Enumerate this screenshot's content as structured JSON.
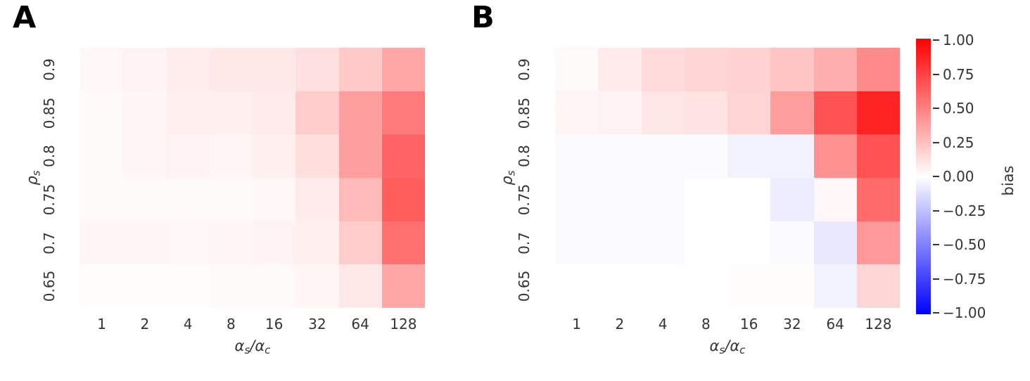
{
  "figure": {
    "background": "#ffffff",
    "text_color": "#343434",
    "panel_letter_color": "#000000"
  },
  "colorbar": {
    "label": "bias",
    "tick_labels": [
      "1.00",
      "0.75",
      "0.50",
      "0.25",
      "0.00",
      "−0.25",
      "−0.50",
      "−0.75",
      "−1.00"
    ],
    "tick_values": [
      1.0,
      0.75,
      0.5,
      0.25,
      0.0,
      -0.25,
      -0.5,
      -0.75,
      -1.0
    ],
    "vmin": -1.0,
    "vmax": 1.0,
    "top_color": "#ff0000",
    "mid_color": "#ffffff",
    "bottom_color": "#0000ff"
  },
  "chart_data": [
    {
      "type": "heatmap",
      "panel_label": "A",
      "colormap": "bwr",
      "vmin": -1.0,
      "vmax": 1.0,
      "x_categories": [
        "1",
        "2",
        "4",
        "8",
        "16",
        "32",
        "64",
        "128"
      ],
      "y_categories": [
        "0.9",
        "0.85",
        "0.8",
        "0.75",
        "0.7",
        "0.65"
      ],
      "xlabel": {
        "base1": "α",
        "sub1": "s",
        "sep": "/",
        "base2": "α",
        "sub2": "c"
      },
      "ylabel": {
        "base": "ρ",
        "sub": "s"
      },
      "values": [
        [
          0.03,
          0.05,
          0.07,
          0.09,
          0.09,
          0.12,
          0.21,
          0.35
        ],
        [
          0.02,
          0.04,
          0.06,
          0.06,
          0.08,
          0.2,
          0.38,
          0.52
        ],
        [
          0.02,
          0.04,
          0.05,
          0.04,
          0.06,
          0.13,
          0.38,
          0.61
        ],
        [
          0.02,
          0.02,
          0.02,
          0.02,
          0.03,
          0.08,
          0.27,
          0.64
        ],
        [
          0.04,
          0.04,
          0.03,
          0.04,
          0.05,
          0.06,
          0.2,
          0.56
        ],
        [
          0.01,
          0.01,
          0.01,
          0.02,
          0.02,
          0.04,
          0.09,
          0.35
        ]
      ]
    },
    {
      "type": "heatmap",
      "panel_label": "B",
      "colormap": "bwr",
      "vmin": -1.0,
      "vmax": 1.0,
      "x_categories": [
        "1",
        "2",
        "4",
        "8",
        "16",
        "32",
        "64",
        "128"
      ],
      "y_categories": [
        "0.9",
        "0.85",
        "0.8",
        "0.75",
        "0.7",
        "0.65"
      ],
      "xlabel": {
        "base1": "α",
        "sub1": "s",
        "sep": "/",
        "base2": "α",
        "sub2": "c"
      },
      "ylabel": {
        "base": "ρ",
        "sub": "s"
      },
      "values": [
        [
          0.02,
          0.08,
          0.14,
          0.17,
          0.18,
          0.23,
          0.32,
          0.46
        ],
        [
          0.04,
          0.05,
          0.1,
          0.11,
          0.17,
          0.39,
          0.68,
          0.86
        ],
        [
          -0.02,
          -0.02,
          -0.02,
          -0.02,
          -0.05,
          -0.05,
          0.43,
          0.68
        ],
        [
          -0.02,
          -0.02,
          -0.02,
          0.0,
          0.0,
          -0.07,
          0.03,
          0.58
        ],
        [
          -0.02,
          -0.02,
          -0.02,
          0.0,
          0.0,
          -0.02,
          -0.09,
          0.4
        ],
        [
          0.0,
          0.0,
          0.0,
          0.0,
          0.01,
          0.01,
          -0.05,
          0.16
        ]
      ]
    }
  ]
}
